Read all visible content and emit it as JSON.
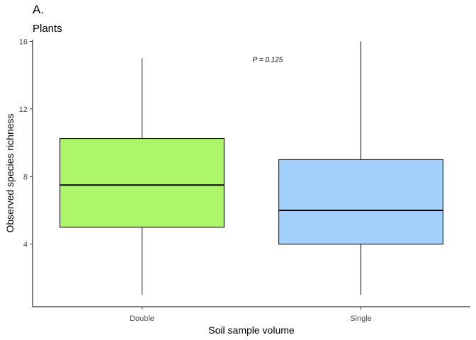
{
  "chart_data": {
    "type": "box",
    "tag": "A.",
    "subtitle": "Plants",
    "xlabel": "Soil sample volume",
    "ylabel": "Observed species richness",
    "categories": [
      "Double",
      "Single"
    ],
    "ylim": [
      0.3,
      16.1
    ],
    "yticks": [
      4,
      8,
      12,
      16
    ],
    "grid": false,
    "annotation": "P = 0.125",
    "boxes": [
      {
        "category": "Double",
        "min": 1,
        "q1": 5,
        "median": 7.5,
        "q3": 10.25,
        "max": 15,
        "color": "#adf56b"
      },
      {
        "category": "Single",
        "min": 1,
        "q1": 4,
        "median": 6,
        "q3": 9,
        "max": 16,
        "color": "#a2d1fd"
      }
    ]
  }
}
